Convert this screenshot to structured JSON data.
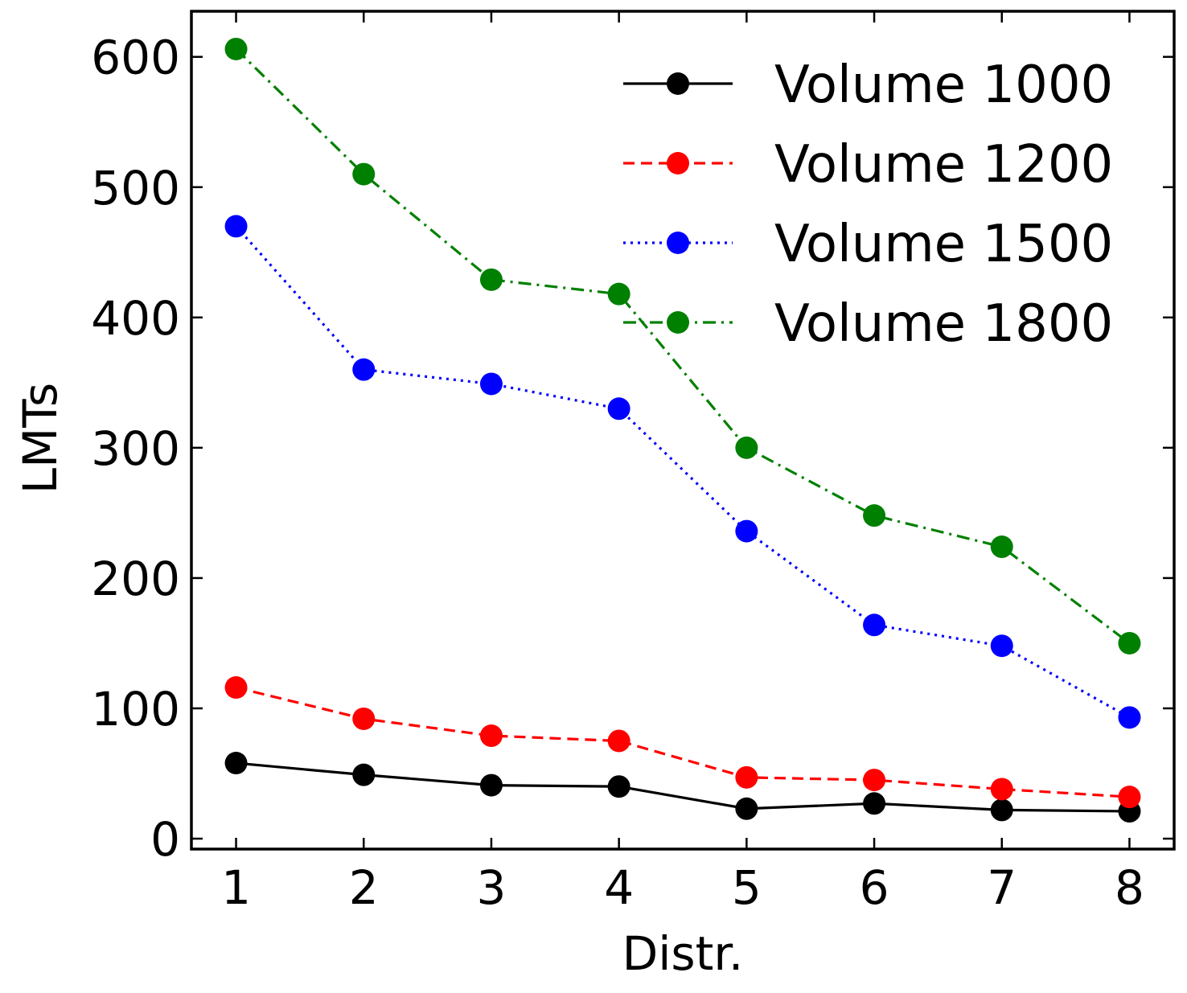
{
  "chart_data": {
    "type": "line",
    "xlabel": "Distr.",
    "ylabel": "LMTs",
    "x": [
      1,
      2,
      3,
      4,
      5,
      6,
      7,
      8
    ],
    "xlim": [
      0.65,
      8.35
    ],
    "ylim": [
      -8,
      635
    ],
    "xticks": [
      1,
      2,
      3,
      4,
      5,
      6,
      7,
      8
    ],
    "yticks": [
      0,
      100,
      200,
      300,
      400,
      500,
      600
    ],
    "tick_direction": "in",
    "grid": false,
    "legend_position": "top-right",
    "series": [
      {
        "name": "Volume 1000",
        "color": "#000000",
        "linestyle": "solid",
        "marker": "circle",
        "values": [
          58,
          49,
          41,
          40,
          23,
          27,
          22,
          21
        ]
      },
      {
        "name": "Volume 1200",
        "color": "#ff0000",
        "linestyle": "dashed",
        "marker": "circle",
        "values": [
          116,
          92,
          79,
          75,
          47,
          45,
          38,
          32
        ]
      },
      {
        "name": "Volume 1500",
        "color": "#0000ff",
        "linestyle": "dotted",
        "marker": "circle",
        "values": [
          470,
          360,
          349,
          330,
          236,
          164,
          148,
          93
        ]
      },
      {
        "name": "Volume 1800",
        "color": "#008000",
        "linestyle": "dashdot",
        "marker": "circle",
        "values": [
          606,
          510,
          429,
          418,
          300,
          248,
          224,
          150
        ]
      }
    ]
  }
}
